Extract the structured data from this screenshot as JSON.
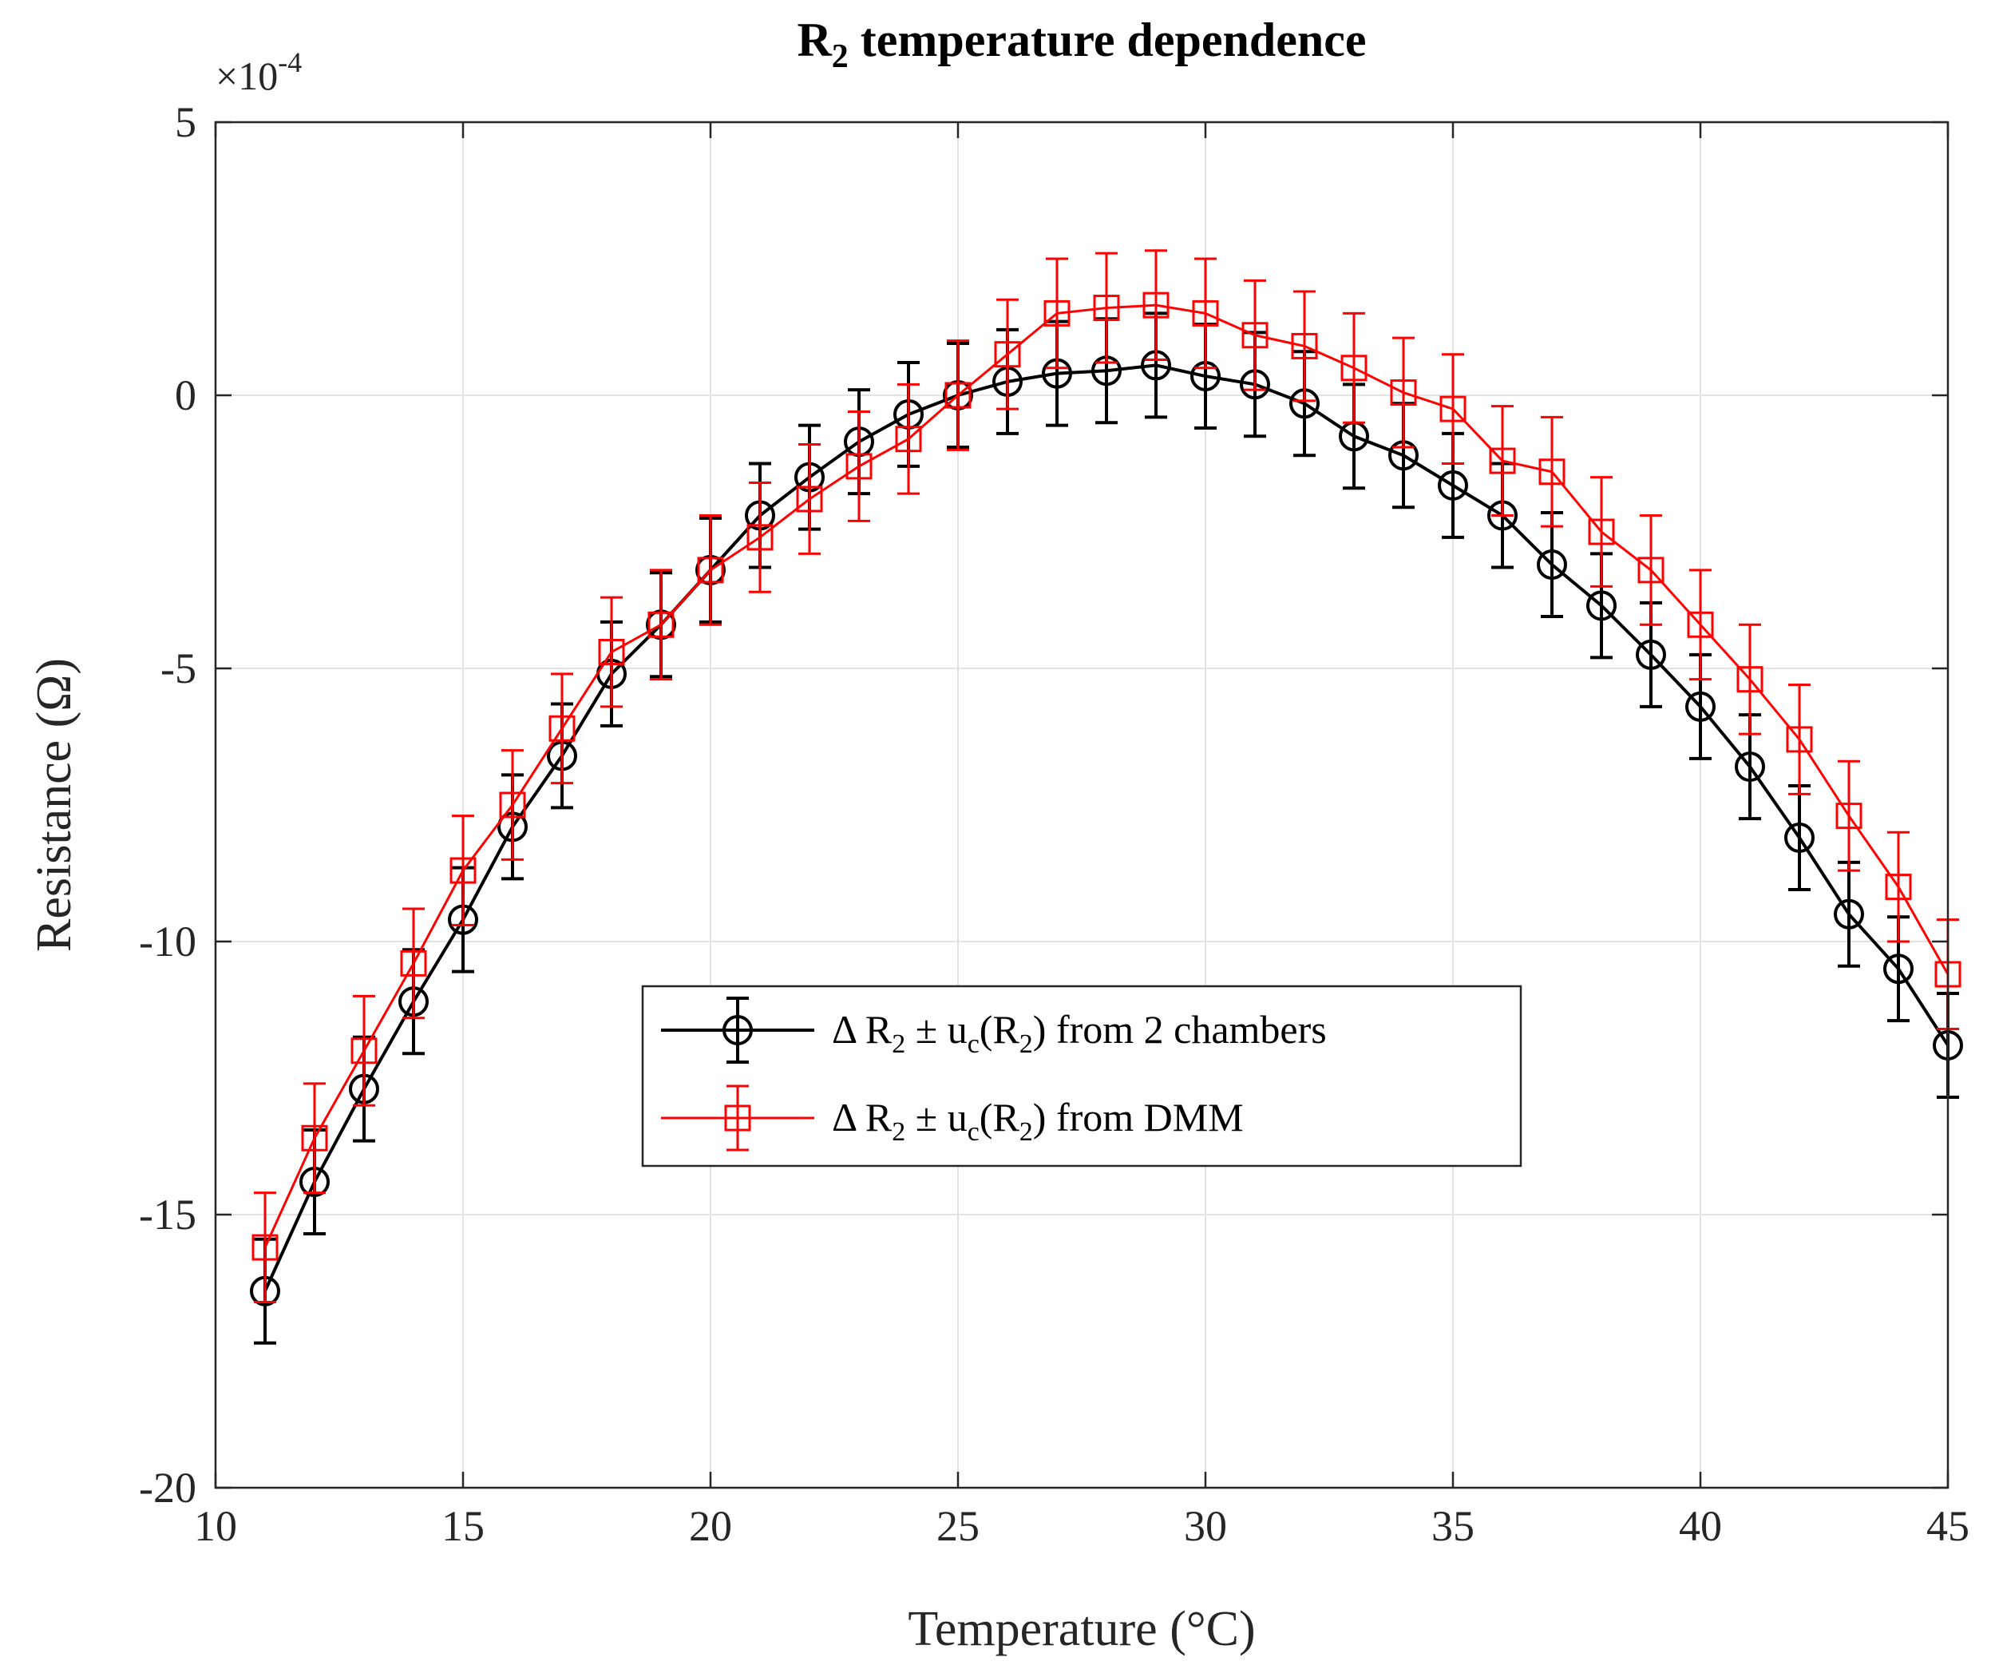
{
  "chart_data": {
    "type": "line",
    "title_main": "R",
    "title_sub": "2",
    "title_rest": " temperature dependence",
    "xlabel": "Temperature (°C)",
    "ylabel": "Resistance (Ω)",
    "exponent_base": "×10",
    "exponent_power": "-4",
    "xlim": [
      10,
      45
    ],
    "ylim": [
      -20,
      5
    ],
    "xticks": [
      10,
      15,
      20,
      25,
      30,
      35,
      40,
      45
    ],
    "yticks": [
      5,
      0,
      -5,
      -10,
      -15,
      -20
    ],
    "xtick_labels": [
      "10",
      "15",
      "20",
      "25",
      "30",
      "35",
      "40",
      "45"
    ],
    "ytick_labels": [
      "5",
      "0",
      "-5",
      "-10",
      "-15",
      "-20"
    ],
    "grid": true,
    "legend_position": "center",
    "series": [
      {
        "name": "2 chambers",
        "legend_label": "Δ R2 ± uc(R2) from 2 chambers",
        "legend": {
          "delta": "Δ R",
          "sub1": "2",
          "pm": " ± u",
          "subc": "c",
          "paren_open": "(R",
          "sub2": "2",
          "tail": ") from 2 chambers"
        },
        "color": "#000000",
        "marker": "circle",
        "x": [
          11,
          12,
          13,
          14,
          15,
          16,
          17,
          18,
          19,
          20,
          21,
          22,
          23,
          24,
          25,
          26,
          27,
          28,
          29,
          30,
          31,
          32,
          33,
          34,
          35,
          36,
          37,
          38,
          39,
          40,
          41,
          42,
          43,
          44,
          45
        ],
        "values": [
          -16.4,
          -14.4,
          -12.7,
          -11.1,
          -9.6,
          -7.9,
          -6.6,
          -5.1,
          -4.2,
          -3.2,
          -2.2,
          -1.5,
          -0.85,
          -0.35,
          0,
          0.25,
          0.4,
          0.45,
          0.55,
          0.35,
          0.2,
          -0.15,
          -0.75,
          -1.1,
          -1.65,
          -2.2,
          -3.1,
          -3.85,
          -4.75,
          -5.7,
          -6.8,
          -8.1,
          -9.5,
          -10.5,
          -11.9
        ],
        "error": 0.95
      },
      {
        "name": "DMM",
        "legend_label": "Δ R2 ± uc(R2) from DMM",
        "legend": {
          "delta": "Δ R",
          "sub1": "2",
          "pm": " ± u",
          "subc": "c",
          "paren_open": "(R",
          "sub2": "2",
          "tail": ") from DMM"
        },
        "color": "#ff0000",
        "marker": "square",
        "x": [
          11,
          12,
          13,
          14,
          15,
          16,
          17,
          18,
          19,
          20,
          21,
          22,
          23,
          24,
          25,
          26,
          27,
          28,
          29,
          30,
          31,
          32,
          33,
          34,
          35,
          36,
          37,
          38,
          39,
          40,
          41,
          42,
          43,
          44,
          45
        ],
        "values": [
          -15.6,
          -13.6,
          -12.0,
          -10.4,
          -8.7,
          -7.5,
          -6.1,
          -4.7,
          -4.2,
          -3.2,
          -2.6,
          -1.9,
          -1.3,
          -0.8,
          0,
          0.75,
          1.5,
          1.6,
          1.65,
          1.5,
          1.1,
          0.9,
          0.5,
          0.05,
          -0.25,
          -1.2,
          -1.4,
          -2.5,
          -3.2,
          -4.2,
          -5.2,
          -6.3,
          -7.7,
          -9.0,
          -10.6
        ],
        "error": 1.0
      }
    ]
  }
}
